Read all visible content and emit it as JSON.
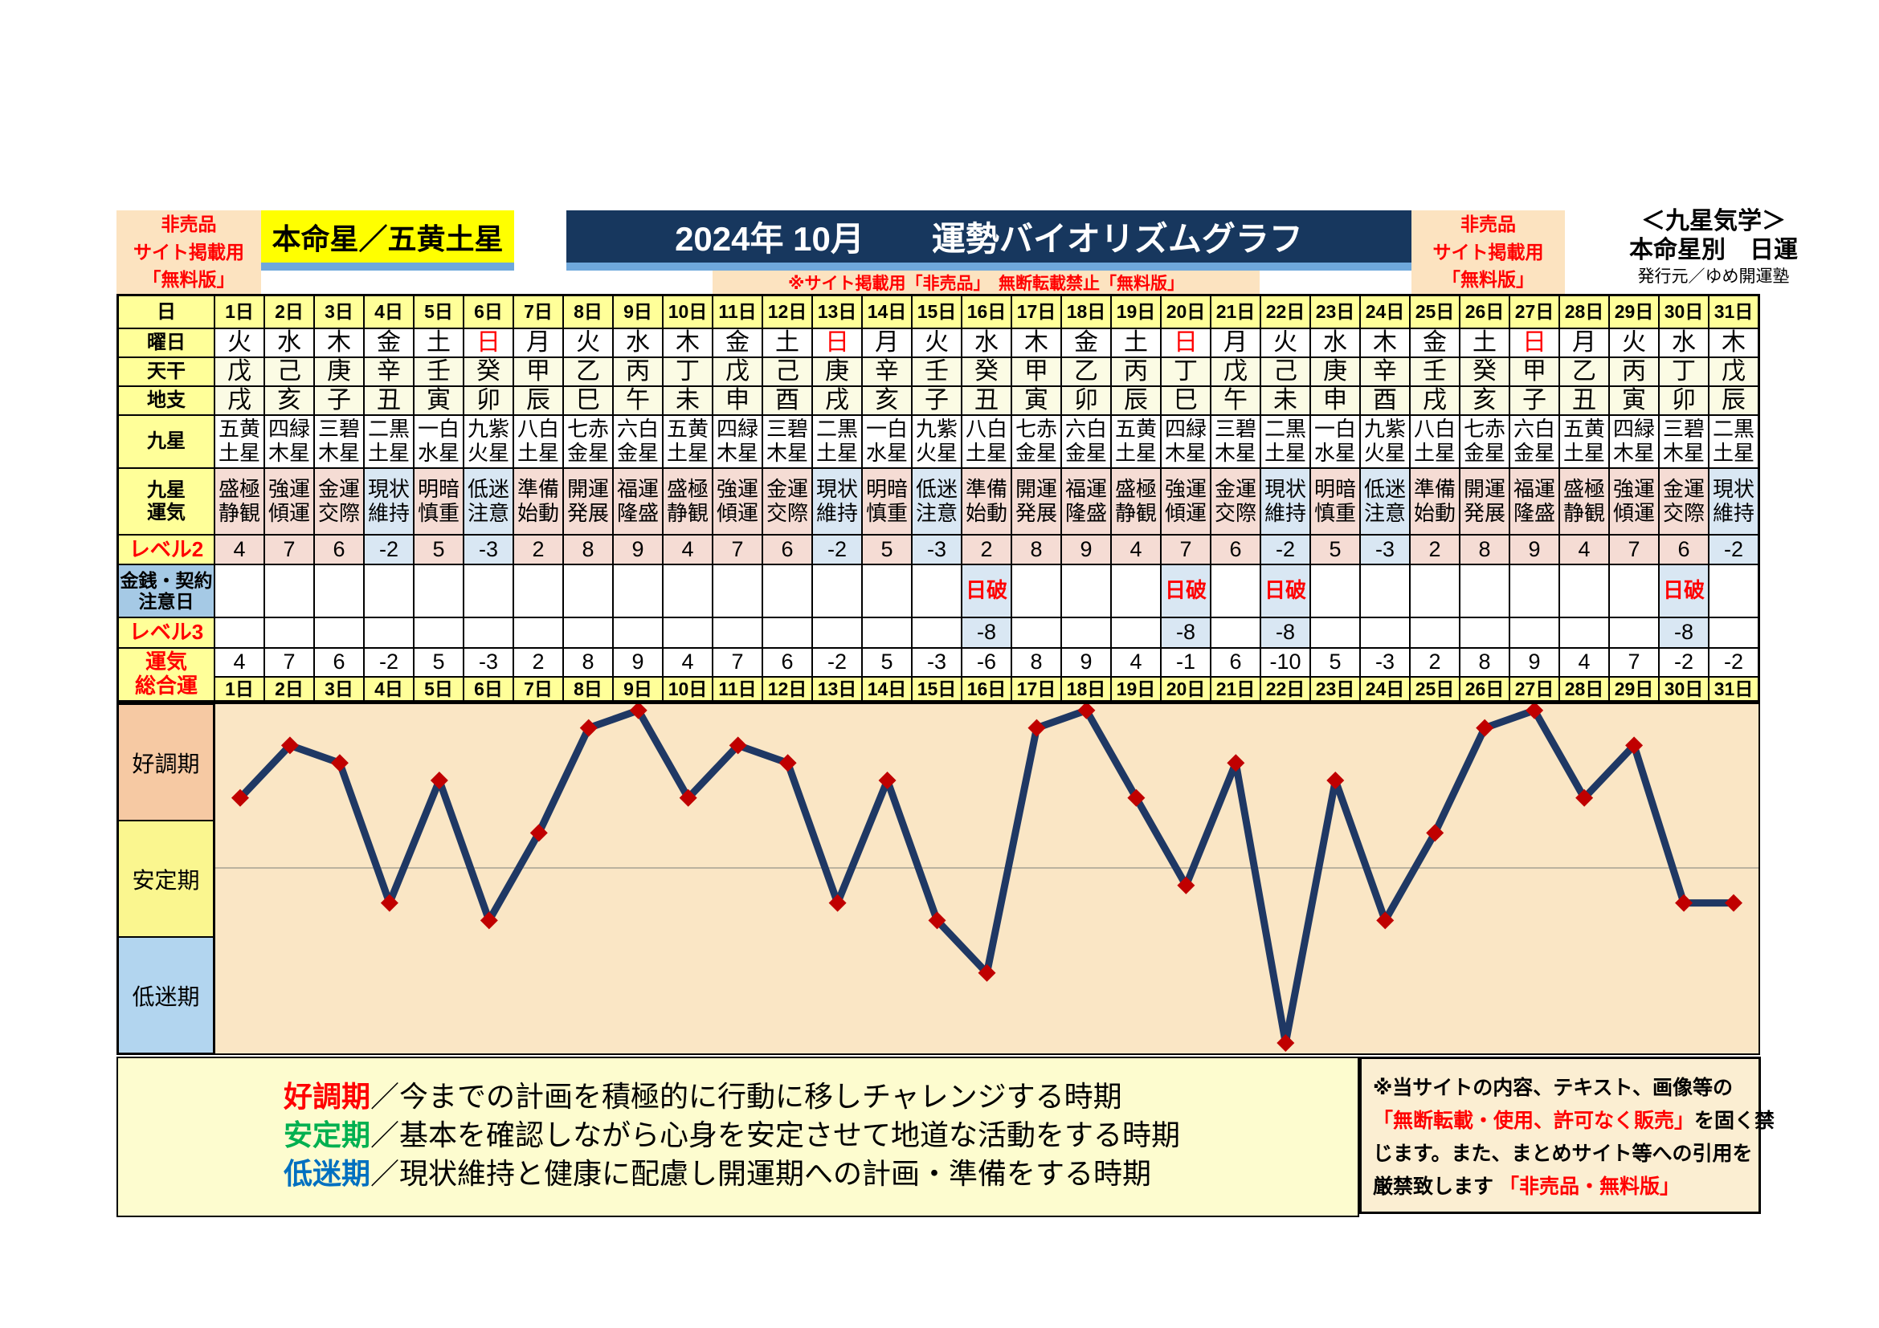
{
  "header": {
    "left_badge": "非売品\nサイト掲載用\n「無料版」",
    "star_box": "本命星／五黄土星",
    "title": "2024年 10月　　運勢バイオリズムグラフ",
    "note": "※サイト掲載用「非売品」　無断転載禁止「無料版」",
    "right_badge": "非売品\nサイト掲載用\n「無料版」",
    "school": "＜九星気学＞",
    "subtitle": "本命星別　日運",
    "publisher": "発行元／ゆめ開運塾"
  },
  "table": {
    "row_labels": {
      "day": "日",
      "weekday": "曜日",
      "stem": "天干",
      "branch": "地支",
      "star": "九星",
      "star_luck": "九星\n運気",
      "level2": "レベル2",
      "caution": "金銭・契約\n注意日",
      "level3": "レベル3",
      "total": "運気\n総合運"
    },
    "days": [
      {
        "label": "1日",
        "weekday": "火",
        "sun": false,
        "stem": "戊",
        "branch": "戌",
        "star": "五黄土星",
        "luck": "盛極静観",
        "neg": false,
        "level2": "4",
        "caution": "",
        "level3": "",
        "total": "4"
      },
      {
        "label": "2日",
        "weekday": "水",
        "sun": false,
        "stem": "己",
        "branch": "亥",
        "star": "四緑木星",
        "luck": "強運傾運",
        "neg": false,
        "level2": "7",
        "caution": "",
        "level3": "",
        "total": "7"
      },
      {
        "label": "3日",
        "weekday": "木",
        "sun": false,
        "stem": "庚",
        "branch": "子",
        "star": "三碧木星",
        "luck": "金運交際",
        "neg": false,
        "level2": "6",
        "caution": "",
        "level3": "",
        "total": "6"
      },
      {
        "label": "4日",
        "weekday": "金",
        "sun": false,
        "stem": "辛",
        "branch": "丑",
        "star": "二黒土星",
        "luck": "現状維持",
        "neg": true,
        "level2": "-2",
        "caution": "",
        "level3": "",
        "total": "-2"
      },
      {
        "label": "5日",
        "weekday": "土",
        "sun": false,
        "stem": "壬",
        "branch": "寅",
        "star": "一白水星",
        "luck": "明暗慎重",
        "neg": false,
        "level2": "5",
        "caution": "",
        "level3": "",
        "total": "5"
      },
      {
        "label": "6日",
        "weekday": "日",
        "sun": true,
        "stem": "癸",
        "branch": "卯",
        "star": "九紫火星",
        "luck": "低迷注意",
        "neg": true,
        "level2": "-3",
        "caution": "",
        "level3": "",
        "total": "-3"
      },
      {
        "label": "7日",
        "weekday": "月",
        "sun": false,
        "stem": "甲",
        "branch": "辰",
        "star": "八白土星",
        "luck": "準備始動",
        "neg": false,
        "level2": "2",
        "caution": "",
        "level3": "",
        "total": "2"
      },
      {
        "label": "8日",
        "weekday": "火",
        "sun": false,
        "stem": "乙",
        "branch": "巳",
        "star": "七赤金星",
        "luck": "開運発展",
        "neg": false,
        "level2": "8",
        "caution": "",
        "level3": "",
        "total": "8"
      },
      {
        "label": "9日",
        "weekday": "水",
        "sun": false,
        "stem": "丙",
        "branch": "午",
        "star": "六白金星",
        "luck": "福運隆盛",
        "neg": false,
        "level2": "9",
        "caution": "",
        "level3": "",
        "total": "9"
      },
      {
        "label": "10日",
        "weekday": "木",
        "sun": false,
        "stem": "丁",
        "branch": "未",
        "star": "五黄土星",
        "luck": "盛極静観",
        "neg": false,
        "level2": "4",
        "caution": "",
        "level3": "",
        "total": "4"
      },
      {
        "label": "11日",
        "weekday": "金",
        "sun": false,
        "stem": "戊",
        "branch": "申",
        "star": "四緑木星",
        "luck": "強運傾運",
        "neg": false,
        "level2": "7",
        "caution": "",
        "level3": "",
        "total": "7"
      },
      {
        "label": "12日",
        "weekday": "土",
        "sun": false,
        "stem": "己",
        "branch": "酉",
        "star": "三碧木星",
        "luck": "金運交際",
        "neg": false,
        "level2": "6",
        "caution": "",
        "level3": "",
        "total": "6"
      },
      {
        "label": "13日",
        "weekday": "日",
        "sun": true,
        "stem": "庚",
        "branch": "戌",
        "star": "二黒土星",
        "luck": "現状維持",
        "neg": true,
        "level2": "-2",
        "caution": "",
        "level3": "",
        "total": "-2"
      },
      {
        "label": "14日",
        "weekday": "月",
        "sun": false,
        "stem": "辛",
        "branch": "亥",
        "star": "一白水星",
        "luck": "明暗慎重",
        "neg": false,
        "level2": "5",
        "caution": "",
        "level3": "",
        "total": "5"
      },
      {
        "label": "15日",
        "weekday": "火",
        "sun": false,
        "stem": "壬",
        "branch": "子",
        "star": "九紫火星",
        "luck": "低迷注意",
        "neg": true,
        "level2": "-3",
        "caution": "",
        "level3": "",
        "total": "-3"
      },
      {
        "label": "16日",
        "weekday": "水",
        "sun": false,
        "stem": "癸",
        "branch": "丑",
        "star": "八白土星",
        "luck": "準備始動",
        "neg": false,
        "level2": "2",
        "caution": "日破",
        "level3": "-8",
        "total": "-6"
      },
      {
        "label": "17日",
        "weekday": "木",
        "sun": false,
        "stem": "甲",
        "branch": "寅",
        "star": "七赤金星",
        "luck": "開運発展",
        "neg": false,
        "level2": "8",
        "caution": "",
        "level3": "",
        "total": "8"
      },
      {
        "label": "18日",
        "weekday": "金",
        "sun": false,
        "stem": "乙",
        "branch": "卯",
        "star": "六白金星",
        "luck": "福運隆盛",
        "neg": false,
        "level2": "9",
        "caution": "",
        "level3": "",
        "total": "9"
      },
      {
        "label": "19日",
        "weekday": "土",
        "sun": false,
        "stem": "丙",
        "branch": "辰",
        "star": "五黄土星",
        "luck": "盛極静観",
        "neg": false,
        "level2": "4",
        "caution": "",
        "level3": "",
        "total": "4"
      },
      {
        "label": "20日",
        "weekday": "日",
        "sun": true,
        "stem": "丁",
        "branch": "巳",
        "star": "四緑木星",
        "luck": "強運傾運",
        "neg": false,
        "level2": "7",
        "caution": "日破",
        "level3": "-8",
        "total": "-1"
      },
      {
        "label": "21日",
        "weekday": "月",
        "sun": false,
        "stem": "戊",
        "branch": "午",
        "star": "三碧木星",
        "luck": "金運交際",
        "neg": false,
        "level2": "6",
        "caution": "",
        "level3": "",
        "total": "6"
      },
      {
        "label": "22日",
        "weekday": "火",
        "sun": false,
        "stem": "己",
        "branch": "未",
        "star": "二黒土星",
        "luck": "現状維持",
        "neg": true,
        "level2": "-2",
        "caution": "日破",
        "level3": "-8",
        "total": "-10"
      },
      {
        "label": "23日",
        "weekday": "水",
        "sun": false,
        "stem": "庚",
        "branch": "申",
        "star": "一白水星",
        "luck": "明暗慎重",
        "neg": false,
        "level2": "5",
        "caution": "",
        "level3": "",
        "total": "5"
      },
      {
        "label": "24日",
        "weekday": "木",
        "sun": false,
        "stem": "辛",
        "branch": "酉",
        "star": "九紫火星",
        "luck": "低迷注意",
        "neg": true,
        "level2": "-3",
        "caution": "",
        "level3": "",
        "total": "-3"
      },
      {
        "label": "25日",
        "weekday": "金",
        "sun": false,
        "stem": "壬",
        "branch": "戌",
        "star": "八白土星",
        "luck": "準備始動",
        "neg": false,
        "level2": "2",
        "caution": "",
        "level3": "",
        "total": "2"
      },
      {
        "label": "26日",
        "weekday": "土",
        "sun": false,
        "stem": "癸",
        "branch": "亥",
        "star": "七赤金星",
        "luck": "開運発展",
        "neg": false,
        "level2": "8",
        "caution": "",
        "level3": "",
        "total": "8"
      },
      {
        "label": "27日",
        "weekday": "日",
        "sun": true,
        "stem": "甲",
        "branch": "子",
        "star": "六白金星",
        "luck": "福運隆盛",
        "neg": false,
        "level2": "9",
        "caution": "",
        "level3": "",
        "total": "9"
      },
      {
        "label": "28日",
        "weekday": "月",
        "sun": false,
        "stem": "乙",
        "branch": "丑",
        "star": "五黄土星",
        "luck": "盛極静観",
        "neg": false,
        "level2": "4",
        "caution": "",
        "level3": "",
        "total": "4"
      },
      {
        "label": "29日",
        "weekday": "火",
        "sun": false,
        "stem": "丙",
        "branch": "寅",
        "star": "四緑木星",
        "luck": "強運傾運",
        "neg": false,
        "level2": "7",
        "caution": "",
        "level3": "",
        "total": "7"
      },
      {
        "label": "30日",
        "weekday": "水",
        "sun": false,
        "stem": "丁",
        "branch": "卯",
        "star": "三碧木星",
        "luck": "金運交際",
        "neg": false,
        "level2": "6",
        "caution": "日破",
        "level3": "-8",
        "total": "-2"
      },
      {
        "label": "31日",
        "weekday": "木",
        "sun": false,
        "stem": "戊",
        "branch": "辰",
        "star": "二黒土星",
        "luck": "現状維持",
        "neg": true,
        "level2": "-2",
        "caution": "",
        "level3": "",
        "total": "-2"
      }
    ]
  },
  "chart_data": {
    "type": "line",
    "title": "2024年 10月 運勢バイオリズムグラフ",
    "x": [
      1,
      2,
      3,
      4,
      5,
      6,
      7,
      8,
      9,
      10,
      11,
      12,
      13,
      14,
      15,
      16,
      17,
      18,
      19,
      20,
      21,
      22,
      23,
      24,
      25,
      26,
      27,
      28,
      29,
      30,
      31
    ],
    "values": [
      4,
      7,
      6,
      -2,
      5,
      -3,
      2,
      8,
      9,
      4,
      7,
      6,
      -2,
      5,
      -3,
      -6,
      8,
      9,
      4,
      -1,
      6,
      -10,
      5,
      -3,
      2,
      8,
      9,
      4,
      7,
      -2,
      -2
    ],
    "ylim": [
      -10.7,
      9.4
    ],
    "zero_line": 0,
    "bands": [
      {
        "label": "好調期"
      },
      {
        "label": "安定期"
      },
      {
        "label": "低迷期"
      }
    ]
  },
  "legend": {
    "items": [
      {
        "term": "好調期",
        "color": "#FF0000",
        "desc": "／今までの計画を積極的に行動に移しチャレンジする時期"
      },
      {
        "term": "安定期",
        "color": "#00B050",
        "desc": "／基本を確認しながら心身を安定させて地道な活動をする時期"
      },
      {
        "term": "低迷期",
        "color": "#0070C0",
        "desc": "／現状維持と健康に配慮し開運期への計画・準備をする時期"
      }
    ]
  },
  "disclaimer": {
    "lines": [
      [
        {
          "t": "※当サイトの内容、テキスト、画像等の",
          "c": "k"
        }
      ],
      [
        {
          "t": "「無断転載・使用、許可なく販売」",
          "c": "r"
        },
        {
          "t": "を固く禁",
          "c": "k"
        }
      ],
      [
        {
          "t": "じます。また、まとめサイト等への引用を",
          "c": "k"
        }
      ],
      [
        {
          "t": "厳禁致します ",
          "c": "k"
        },
        {
          "t": "「非売品・無料版」",
          "c": "r"
        }
      ]
    ]
  },
  "colors": {
    "line": "#1F3864",
    "marker": "#C00000",
    "zero_line": "#A6A192",
    "band_good": "#F6C9A3",
    "band_stable": "#FAF68F",
    "band_slump": "#B2D5EF",
    "header_navy": "#17375E",
    "underline_blue": "#6FA8DC",
    "badge_bg": "#FCE3C0",
    "plot_bg": "#FAE6C5"
  }
}
